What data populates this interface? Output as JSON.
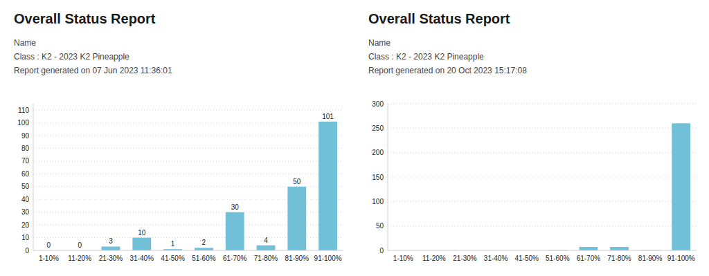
{
  "chart_data": [
    {
      "type": "bar",
      "title": "Overall Status Report",
      "annotations": [
        "Name",
        "Class : K2 - 2023 K2 Pineapple",
        "Report generated on 07 Jun 2023 11:36:01"
      ],
      "categories": [
        "1-10%",
        "11-20%",
        "21-30%",
        "31-40%",
        "41-50%",
        "51-60%",
        "61-70%",
        "71-80%",
        "81-90%",
        "91-100%"
      ],
      "values": [
        0,
        0,
        3,
        10,
        1,
        2,
        30,
        4,
        50,
        101
      ],
      "color": "#72c0d8",
      "ylim": [
        0,
        115
      ],
      "yticks": [
        0,
        10,
        20,
        30,
        40,
        50,
        60,
        70,
        80,
        90,
        100,
        110
      ],
      "grid": true,
      "data_labels": true
    },
    {
      "type": "bar",
      "title": "Overall Status Report",
      "annotations": [
        "Name",
        "Class : K2 - 2023 K2 Pineapple",
        "Report generated on 20 Oct 2023 15:17:08"
      ],
      "categories": [
        "1-10%",
        "11-20%",
        "21-30%",
        "31-40%",
        "41-50%",
        "51-60%",
        "61-70%",
        "71-80%",
        "81-90%",
        "91-100%"
      ],
      "values": [
        0,
        0,
        0,
        0,
        0,
        1,
        7,
        7,
        1,
        260
      ],
      "color": "#72c0d8",
      "ylim": [
        0,
        300
      ],
      "yticks": [
        0,
        50,
        100,
        150,
        200,
        250,
        300
      ],
      "grid": true,
      "data_labels": false
    }
  ]
}
